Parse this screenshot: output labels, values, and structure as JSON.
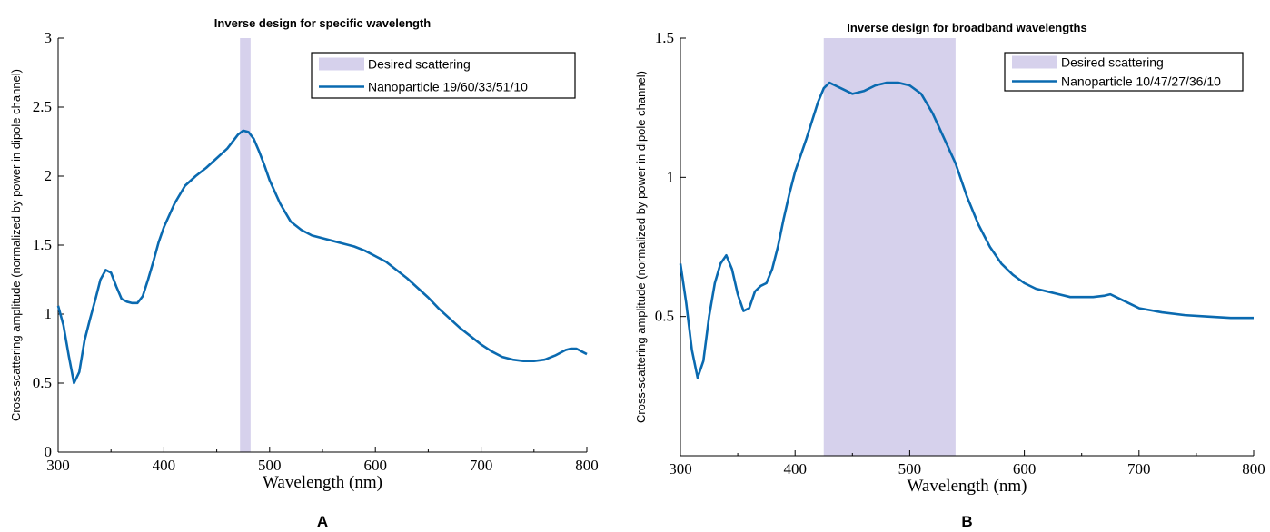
{
  "chart_data": [
    {
      "type": "line",
      "panel_label": "A",
      "title": "Inverse design for specific wavelength",
      "xlabel": "Wavelength (nm)",
      "ylabel": "Cross-scattering amplitude (normalized by power in dipole channel)",
      "xlim": [
        300,
        800
      ],
      "ylim": [
        0,
        3
      ],
      "x_ticks": [
        300,
        400,
        500,
        600,
        700,
        800
      ],
      "y_ticks": [
        0,
        0.5,
        1,
        1.5,
        2,
        2.5,
        3
      ],
      "y_tick_labels": [
        "0",
        "0.5",
        "1",
        "1.5",
        "2",
        "2.5",
        "3"
      ],
      "legend_position": "top-right",
      "band": {
        "name": "Desired scattering",
        "x0": 472,
        "x1": 482,
        "color": "#d6d1ec"
      },
      "series": [
        {
          "name": "Nanoparticle 19/60/33/51/10",
          "color": "#0a6ab0",
          "x": [
            300,
            305,
            310,
            315,
            320,
            325,
            330,
            335,
            340,
            345,
            350,
            355,
            360,
            365,
            370,
            375,
            380,
            385,
            390,
            395,
            400,
            410,
            420,
            430,
            440,
            450,
            460,
            470,
            475,
            480,
            485,
            490,
            495,
            500,
            510,
            520,
            530,
            540,
            550,
            560,
            570,
            580,
            590,
            600,
            610,
            620,
            630,
            640,
            650,
            660,
            670,
            680,
            690,
            700,
            710,
            720,
            730,
            740,
            750,
            760,
            770,
            780,
            785,
            790,
            795,
            800
          ],
          "y": [
            1.06,
            0.92,
            0.7,
            0.5,
            0.58,
            0.81,
            0.96,
            1.1,
            1.25,
            1.32,
            1.3,
            1.2,
            1.11,
            1.09,
            1.08,
            1.08,
            1.13,
            1.25,
            1.38,
            1.52,
            1.63,
            1.8,
            1.93,
            2.0,
            2.06,
            2.13,
            2.2,
            2.3,
            2.33,
            2.32,
            2.27,
            2.18,
            2.08,
            1.97,
            1.8,
            1.67,
            1.61,
            1.57,
            1.55,
            1.53,
            1.51,
            1.49,
            1.46,
            1.42,
            1.38,
            1.32,
            1.26,
            1.19,
            1.12,
            1.04,
            0.97,
            0.9,
            0.84,
            0.78,
            0.73,
            0.69,
            0.67,
            0.66,
            0.66,
            0.67,
            0.7,
            0.74,
            0.75,
            0.75,
            0.73,
            0.71
          ]
        }
      ]
    },
    {
      "type": "line",
      "panel_label": "B",
      "title": "Inverse design for broadband wavelengths",
      "xlabel": "Wavelength (nm)",
      "ylabel": "Cross-scattering amplitude (normalized by power in dipole channel)",
      "xlim": [
        300,
        800
      ],
      "ylim": [
        0,
        1.5
      ],
      "x_ticks": [
        300,
        400,
        500,
        600,
        700,
        800
      ],
      "y_ticks": [
        0.5,
        1,
        1.5
      ],
      "y_tick_labels": [
        "0.5",
        "1",
        "1.5"
      ],
      "legend_position": "top-right",
      "band": {
        "name": "Desired scattering",
        "x0": 425,
        "x1": 540,
        "color": "#d6d1ec"
      },
      "series": [
        {
          "name": "Nanoparticle 10/47/27/36/10",
          "color": "#0a6ab0",
          "x": [
            300,
            305,
            310,
            315,
            320,
            325,
            330,
            335,
            340,
            345,
            350,
            355,
            360,
            365,
            370,
            375,
            380,
            385,
            390,
            395,
            400,
            410,
            420,
            425,
            430,
            435,
            440,
            450,
            460,
            470,
            480,
            490,
            500,
            510,
            520,
            530,
            540,
            550,
            560,
            570,
            580,
            590,
            600,
            610,
            620,
            630,
            640,
            650,
            660,
            670,
            675,
            680,
            690,
            700,
            720,
            740,
            760,
            780,
            800
          ],
          "y": [
            0.69,
            0.55,
            0.38,
            0.28,
            0.34,
            0.5,
            0.62,
            0.69,
            0.72,
            0.67,
            0.58,
            0.52,
            0.53,
            0.59,
            0.61,
            0.62,
            0.67,
            0.75,
            0.85,
            0.94,
            1.02,
            1.14,
            1.27,
            1.32,
            1.34,
            1.33,
            1.32,
            1.3,
            1.31,
            1.33,
            1.34,
            1.34,
            1.33,
            1.3,
            1.23,
            1.14,
            1.05,
            0.93,
            0.83,
            0.75,
            0.69,
            0.65,
            0.62,
            0.6,
            0.59,
            0.58,
            0.57,
            0.57,
            0.57,
            0.575,
            0.58,
            0.57,
            0.55,
            0.53,
            0.515,
            0.505,
            0.5,
            0.495,
            0.495
          ]
        }
      ]
    }
  ]
}
